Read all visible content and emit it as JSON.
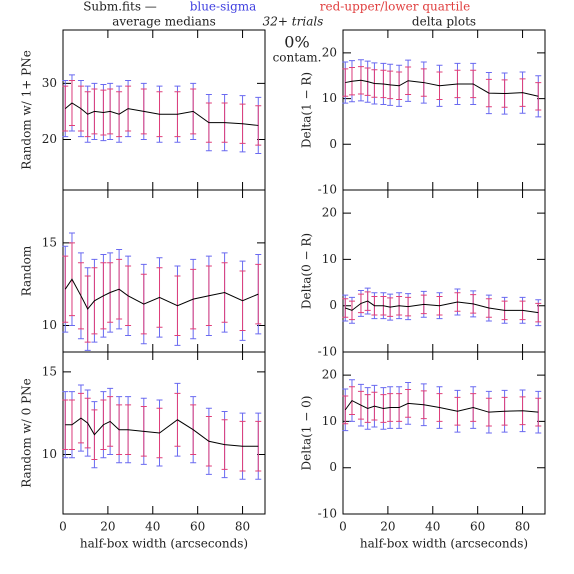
{
  "header": {
    "file": "Subm.fits  —",
    "blue": "blue-sigma",
    "red": "red-upper/lower quartile",
    "trials": "32+ trials",
    "contam_value": "0%",
    "contam_label": "contam."
  },
  "chart_data": [
    {
      "type": "line",
      "title": "average medians",
      "y_label": "Random w/ 1+ PNe",
      "color": "#000000",
      "sigma_color": "#6a6af0",
      "quartile_color": "#e0407a",
      "x": [
        1,
        4,
        8,
        11,
        14,
        18,
        21,
        25,
        29,
        36,
        43,
        51,
        58,
        65,
        72,
        80,
        87
      ],
      "values": [
        25.5,
        26.5,
        25.5,
        24.5,
        25,
        24.8,
        25,
        24.5,
        25.5,
        25,
        24.5,
        24.5,
        25,
        23,
        23,
        22.8,
        22.5
      ],
      "sigma": [
        5,
        5,
        5,
        5,
        5,
        5,
        5,
        5,
        5,
        5,
        5,
        5,
        5,
        5,
        5,
        5,
        5
      ],
      "quartile": [
        4,
        4,
        4,
        4,
        4,
        4,
        4,
        4,
        4,
        4,
        4,
        4,
        4,
        3.5,
        3.5,
        3.5,
        3.5
      ],
      "xlim": [
        0,
        90
      ],
      "ylim": [
        11,
        39.5
      ],
      "xticks": [
        0,
        20,
        40,
        60,
        80
      ],
      "yticks": [
        20,
        30
      ],
      "xtick_labels": false
    },
    {
      "type": "line",
      "y_label": "Random",
      "color": "#000000",
      "sigma_color": "#6a6af0",
      "quartile_color": "#e0407a",
      "x": [
        1,
        4,
        8,
        11,
        14,
        18,
        21,
        25,
        29,
        36,
        43,
        51,
        58,
        65,
        72,
        80,
        87
      ],
      "values": [
        12.2,
        12.8,
        11.8,
        11,
        11.5,
        11.8,
        12,
        12.2,
        11.8,
        11.3,
        11.7,
        11.2,
        11.6,
        11.8,
        12,
        11.5,
        11.9
      ],
      "sigma": [
        2.6,
        2.8,
        2.6,
        2.5,
        2.5,
        2.5,
        2.4,
        2.4,
        2.4,
        2.4,
        2.4,
        2.4,
        2.4,
        2.4,
        2.4,
        2.4,
        2.4
      ],
      "quartile": [
        2,
        2.2,
        2,
        2,
        2,
        2,
        1.8,
        1.8,
        1.8,
        1.8,
        1.8,
        1.8,
        1.8,
        1.8,
        1.8,
        1.8,
        1.8
      ],
      "xlim": [
        0,
        90
      ],
      "ylim": [
        8.4,
        18.2
      ],
      "xticks": [
        0,
        20,
        40,
        60,
        80
      ],
      "yticks": [
        10,
        15
      ],
      "xtick_labels": false
    },
    {
      "type": "line",
      "y_label": "Random w/ 0 PNe",
      "x_label": "half-box width (arcseconds)",
      "color": "#000000",
      "sigma_color": "#6a6af0",
      "quartile_color": "#e0407a",
      "x": [
        1,
        4,
        8,
        11,
        14,
        18,
        21,
        25,
        29,
        36,
        43,
        51,
        58,
        65,
        72,
        80,
        87
      ],
      "values": [
        11.8,
        11.8,
        12.2,
        11.9,
        11.2,
        11.8,
        12,
        11.5,
        11.5,
        11.4,
        11.3,
        12.1,
        11.5,
        10.8,
        10.6,
        10.5,
        10.5
      ],
      "sigma": [
        2,
        2,
        2,
        2,
        2,
        2,
        2,
        2,
        2,
        2,
        2,
        2.2,
        2,
        2,
        2,
        2,
        2
      ],
      "quartile": [
        1.5,
        1.5,
        1.5,
        1.5,
        1.5,
        1.5,
        1.5,
        1.5,
        1.5,
        1.5,
        1.5,
        1.6,
        1.5,
        1.5,
        1.5,
        1.5,
        1.5
      ],
      "xlim": [
        0,
        90
      ],
      "ylim": [
        6.4,
        16.2
      ],
      "xticks": [
        0,
        20,
        40,
        60,
        80
      ],
      "yticks": [
        10,
        15
      ],
      "xtick_labels": true
    },
    {
      "type": "line",
      "title": "delta plots",
      "y_label": "Delta(1  −  R)",
      "color": "#000000",
      "sigma_color": "#6a6af0",
      "quartile_color": "#e0407a",
      "x": [
        1,
        4,
        8,
        11,
        14,
        18,
        21,
        25,
        29,
        36,
        43,
        51,
        58,
        65,
        72,
        80,
        87
      ],
      "values": [
        13.5,
        13.8,
        14,
        13.7,
        13.3,
        13.2,
        13,
        12.8,
        13.9,
        13.5,
        12.8,
        13.2,
        13.2,
        11.2,
        11.1,
        11.3,
        10.5
      ],
      "sigma": [
        4.5,
        4.5,
        4.5,
        4.5,
        4.5,
        4.5,
        4.5,
        4.5,
        4.5,
        4.5,
        4.5,
        4.5,
        4.5,
        4.5,
        4.5,
        4.5,
        4.5
      ],
      "quartile": [
        3,
        3,
        3,
        3,
        3,
        3,
        3,
        3,
        3,
        3,
        3,
        3,
        3,
        3,
        3,
        3,
        3
      ],
      "xlim": [
        0,
        90
      ],
      "ylim": [
        -10,
        25
      ],
      "xticks": [
        0,
        20,
        40,
        60,
        80
      ],
      "yticks": [
        -10,
        0,
        10,
        20
      ],
      "xtick_labels": false
    },
    {
      "type": "line",
      "y_label": "Delta(0  −  R)",
      "color": "#000000",
      "sigma_color": "#6a6af0",
      "quartile_color": "#e0407a",
      "x": [
        1,
        4,
        8,
        11,
        14,
        18,
        21,
        25,
        29,
        36,
        43,
        51,
        58,
        65,
        72,
        80,
        87
      ],
      "values": [
        -0.5,
        -1,
        0.5,
        1,
        0,
        0,
        -0.3,
        0,
        -0.2,
        0.3,
        0,
        0.8,
        0.4,
        -0.5,
        -1,
        -1,
        -1.5
      ],
      "sigma": [
        2.8,
        2.8,
        2.8,
        2.8,
        2.8,
        2.8,
        2.8,
        2.8,
        2.8,
        2.8,
        2.8,
        2.8,
        2.8,
        2.8,
        2.8,
        2.8,
        2.8
      ],
      "quartile": [
        2,
        2,
        2,
        2,
        2,
        2,
        2,
        2,
        2,
        2,
        2,
        2,
        2,
        2,
        2,
        2,
        2
      ],
      "xlim": [
        0,
        90
      ],
      "ylim": [
        -10,
        25
      ],
      "xticks": [
        0,
        20,
        40,
        60,
        80
      ],
      "yticks": [
        -10,
        0,
        10,
        20
      ],
      "xtick_labels": false
    },
    {
      "type": "line",
      "y_label": "Delta(1  −  0)",
      "x_label": "half-box width (arcseconds)",
      "color": "#000000",
      "sigma_color": "#6a6af0",
      "quartile_color": "#e0407a",
      "x": [
        1,
        4,
        8,
        11,
        14,
        18,
        21,
        25,
        29,
        36,
        43,
        51,
        58,
        65,
        72,
        80,
        87
      ],
      "values": [
        12.5,
        14.5,
        13.5,
        12.8,
        13.3,
        12.8,
        13,
        13,
        13.9,
        13.6,
        13,
        12.2,
        13,
        12,
        12.2,
        12.3,
        12
      ],
      "sigma": [
        4.5,
        4.5,
        4.5,
        4.5,
        4.5,
        4.5,
        4.5,
        4.5,
        4.5,
        4.5,
        4.5,
        4.5,
        4.5,
        4.5,
        4.5,
        4.5,
        4.5
      ],
      "quartile": [
        3,
        3,
        3,
        3,
        3,
        3,
        3,
        3,
        3,
        3,
        3,
        3,
        3,
        3,
        3,
        3,
        3
      ],
      "xlim": [
        0,
        90
      ],
      "ylim": [
        -10,
        25
      ],
      "xticks": [
        0,
        20,
        40,
        60,
        80
      ],
      "yticks": [
        -10,
        0,
        10,
        20
      ],
      "xtick_labels": true
    }
  ]
}
